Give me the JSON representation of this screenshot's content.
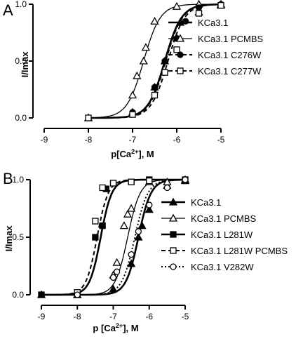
{
  "chart_data": [
    {
      "panel": "A",
      "type": "scatter",
      "xlabel": "p[Ca2+], M",
      "xlabel_parts": {
        "pre": "p[Ca",
        "sup": "2+",
        "post": "], M"
      },
      "ylabel": "I/Imax",
      "xlim": [
        -9,
        -5
      ],
      "ylim": [
        0,
        1.0
      ],
      "xticks": [
        -9,
        -8,
        -7,
        -6,
        -5
      ],
      "yticks": [
        0.0,
        0.5,
        1.0
      ],
      "xtick_labels": [
        "-9",
        "-8",
        "-7",
        "-6",
        "-5"
      ],
      "ytick_labels": [
        "0.0",
        "0.5",
        "1.0"
      ],
      "legend_position": "right",
      "series": [
        {
          "name": "KCa3.1",
          "marker": "triangle-filled",
          "line": "solid-thick",
          "ec50_log": -6.27,
          "hill": 2.3,
          "x": [
            -8,
            -7,
            -6.5,
            -6.27,
            -6,
            -5.5,
            -5
          ],
          "y": [
            0.0,
            0.05,
            0.27,
            0.5,
            0.7,
            0.93,
            0.99
          ]
        },
        {
          "name": "KCa3.1 PCMBS",
          "marker": "triangle-open",
          "line": "solid-thin",
          "ec50_log": -6.75,
          "hill": 2.3,
          "x": [
            -8,
            -7,
            -6.9,
            -6.75,
            -6.7,
            -6.5,
            -6,
            -5.5,
            -5
          ],
          "y": [
            0.0,
            0.2,
            0.37,
            0.5,
            0.62,
            0.85,
            0.98,
            1.0,
            1.0
          ]
        },
        {
          "name": "KCa3.1 C276W",
          "marker": "circle-filled",
          "line": "dashed",
          "ec50_log": -6.25,
          "hill": 2.3,
          "x": [
            -8,
            -7,
            -6.5,
            -6.27,
            -6,
            -5.8,
            -5.5,
            -5
          ],
          "y": [
            0.0,
            0.05,
            0.27,
            0.5,
            0.7,
            0.85,
            0.97,
            1.0
          ]
        },
        {
          "name": "KCa3.1 C277W",
          "marker": "square-open",
          "line": "dashed",
          "ec50_log": -6.2,
          "hill": 2.3,
          "x": [
            -8,
            -7,
            -6.5,
            -6.27,
            -6,
            -5.5,
            -5
          ],
          "y": [
            0.0,
            0.03,
            0.2,
            0.4,
            0.6,
            0.92,
            0.99
          ]
        }
      ]
    },
    {
      "panel": "B",
      "type": "scatter",
      "xlabel": "p [Ca2+], M",
      "xlabel_parts": {
        "pre": "p [Ca",
        "sup": "2+",
        "post": "], M"
      },
      "ylabel": "I/Imax",
      "xlim": [
        -9,
        -5
      ],
      "ylim": [
        0,
        1.0
      ],
      "xticks": [
        -9,
        -8,
        -7,
        -6,
        -5
      ],
      "yticks": [
        0.0,
        0.5,
        1.0
      ],
      "xtick_labels": [
        "-9",
        "-8",
        "-7",
        "-6",
        "-5"
      ],
      "ytick_labels": [
        "0.0",
        "0.5",
        "1.0"
      ],
      "legend_position": "right",
      "series": [
        {
          "name": "KCa3.1",
          "marker": "triangle-filled",
          "line": "solid-thick",
          "ec50_log": -6.3,
          "hill": 2.5,
          "x": [
            -9,
            -8,
            -7,
            -6.5,
            -6.3,
            -6.2,
            -6,
            -5.5,
            -5
          ],
          "y": [
            0.0,
            0.0,
            0.05,
            0.27,
            0.5,
            0.6,
            0.74,
            0.95,
            0.99
          ]
        },
        {
          "name": "KCa3.1 PCMBS",
          "marker": "triangle-open",
          "line": "solid-thin",
          "ec50_log": -6.6,
          "hill": 2.5,
          "x": [
            -8,
            -7,
            -6.9,
            -6.7,
            -6.6,
            -6.5,
            -6,
            -5.5,
            -5
          ],
          "y": [
            0.0,
            0.17,
            0.28,
            0.6,
            0.7,
            0.75,
            0.98,
            0.98,
            1.0
          ]
        },
        {
          "name": "KCa3.1 L281W",
          "marker": "square-filled",
          "line": "solid-thick",
          "ec50_log": -7.35,
          "hill": 2.8,
          "x": [
            -9,
            -8,
            -7.5,
            -7.3,
            -7.2,
            -7,
            -6.5,
            -6,
            -5
          ],
          "y": [
            0.0,
            0.0,
            0.5,
            0.6,
            0.92,
            0.97,
            0.98,
            1.0,
            1.0
          ]
        },
        {
          "name": "KCa3.1 L281W PCMBS",
          "marker": "square-open",
          "line": "dashed",
          "ec50_log": -7.45,
          "hill": 2.8,
          "x": [
            -8,
            -7.5,
            -7.3,
            -7,
            -6.5,
            -6
          ],
          "y": [
            0.02,
            0.64,
            0.93,
            0.97,
            0.98,
            0.99
          ]
        },
        {
          "name": "KCa3.1 V282W",
          "marker": "circle-open",
          "line": "dotted",
          "ec50_log": -6.4,
          "hill": 2.4,
          "x": [
            -8,
            -7,
            -6.9,
            -6.5,
            -6.3,
            -6,
            -5.5,
            -5
          ],
          "y": [
            0.0,
            0.15,
            0.2,
            0.35,
            0.55,
            0.78,
            0.93,
            1.0
          ]
        }
      ]
    }
  ]
}
